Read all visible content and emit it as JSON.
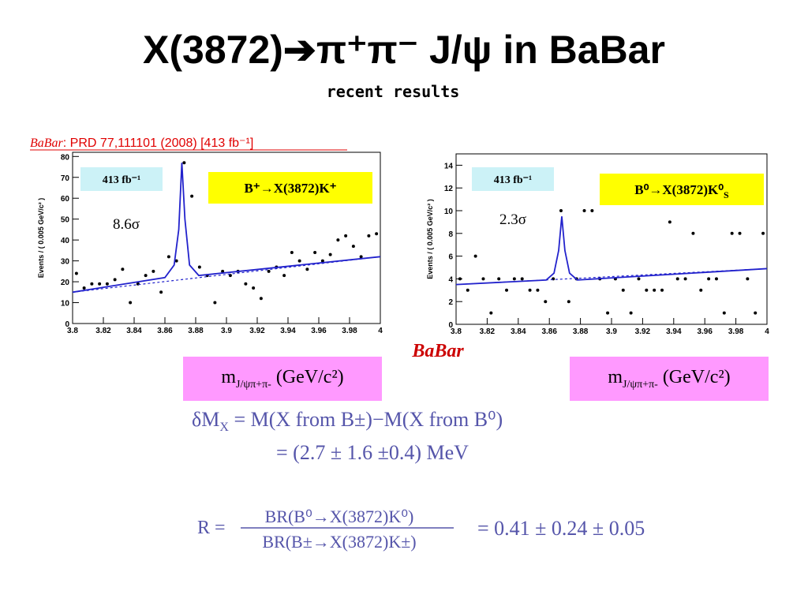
{
  "title": "X(3872)➔π⁺π⁻ J/ψ in BaBar",
  "subtitle": "recent results",
  "reference": {
    "experiment": "BaBar",
    "text": ": PRD 77,111101 (2008) [413 fb⁻¹]"
  },
  "logo": "BaBar",
  "chart_data": [
    {
      "type": "scatter",
      "xlim": [
        3.8,
        4.0
      ],
      "ylim": [
        0,
        82
      ],
      "xticks": [
        3.8,
        3.82,
        3.84,
        3.86,
        3.88,
        3.9,
        3.92,
        3.94,
        3.96,
        3.98,
        4
      ],
      "yticks": [
        0,
        10,
        20,
        30,
        40,
        50,
        60,
        70,
        80
      ],
      "ylabel": "Events / ( 0.005 GeV/c² )",
      "xlabel": {
        "main": "m",
        "sub": "J/ψπ+π-",
        "rest": " (GeV/c²)"
      },
      "luminosity": "413 fb⁻¹",
      "process": {
        "main": "B⁺→X(3872)K⁺",
        "sub": ""
      },
      "significance": "8.6σ",
      "series": [
        {
          "style": "points",
          "color": "#000000",
          "x": [
            3.8025,
            3.8075,
            3.8125,
            3.8175,
            3.8225,
            3.8275,
            3.8325,
            3.8375,
            3.8425,
            3.8475,
            3.8525,
            3.8575,
            3.8625,
            3.8675,
            3.8725,
            3.8775,
            3.8825,
            3.8875,
            3.8925,
            3.8975,
            3.9025,
            3.9075,
            3.9125,
            3.9175,
            3.9225,
            3.9275,
            3.9325,
            3.9375,
            3.9425,
            3.9475,
            3.9525,
            3.9575,
            3.9625,
            3.9675,
            3.9725,
            3.9775,
            3.9825,
            3.9875,
            3.9925,
            3.9975
          ],
          "values": [
            24,
            17,
            19,
            19,
            19,
            21,
            26,
            10,
            19,
            23,
            25,
            15,
            32,
            30,
            77,
            61,
            27,
            23,
            10,
            25,
            23,
            25,
            19,
            17,
            12,
            25,
            27,
            23,
            34,
            30,
            26,
            34,
            30,
            33,
            40,
            42,
            37,
            32,
            42,
            43
          ]
        },
        {
          "style": "line",
          "color": "#2222cc",
          "x": [
            3.8,
            3.86,
            3.866,
            3.869,
            3.871,
            3.873,
            3.876,
            3.882,
            4.0
          ],
          "values": [
            15,
            22,
            28,
            45,
            77,
            50,
            28,
            23,
            32
          ]
        },
        {
          "style": "dashed",
          "color": "#2222cc",
          "x": [
            3.8,
            4.0
          ],
          "values": [
            15,
            32
          ]
        }
      ]
    },
    {
      "type": "scatter",
      "xlim": [
        3.8,
        4.0
      ],
      "ylim": [
        0,
        15
      ],
      "xticks": [
        3.8,
        3.82,
        3.84,
        3.86,
        3.88,
        3.9,
        3.92,
        3.94,
        3.96,
        3.98,
        4
      ],
      "yticks": [
        0,
        2,
        4,
        6,
        8,
        10,
        12,
        14
      ],
      "ylabel": "Events / ( 0.005 GeV/c² )",
      "xlabel": {
        "main": "m",
        "sub": "J/ψπ+π-",
        "rest": " (GeV/c²)"
      },
      "luminosity": "413 fb⁻¹",
      "process": {
        "main": "B⁰→X(3872)K⁰",
        "sub": "S"
      },
      "significance": "2.3σ",
      "series": [
        {
          "style": "points",
          "color": "#000000",
          "x": [
            3.8025,
            3.8075,
            3.8125,
            3.8175,
            3.8225,
            3.8275,
            3.8325,
            3.8375,
            3.8425,
            3.8475,
            3.8525,
            3.8575,
            3.8625,
            3.8675,
            3.8725,
            3.8775,
            3.8825,
            3.8875,
            3.8925,
            3.8975,
            3.9025,
            3.9075,
            3.9125,
            3.9175,
            3.9225,
            3.9275,
            3.9325,
            3.9375,
            3.9425,
            3.9475,
            3.9525,
            3.9575,
            3.9625,
            3.9675,
            3.9725,
            3.9775,
            3.9825,
            3.9875,
            3.9925,
            3.9975
          ],
          "values": [
            4,
            3,
            6,
            4,
            1,
            4,
            3,
            4,
            4,
            3,
            3,
            2,
            4,
            10,
            2,
            4,
            10,
            10,
            4,
            1,
            4,
            3,
            1,
            4,
            3,
            3,
            3,
            9,
            4,
            4,
            8,
            3,
            4,
            4,
            1,
            8,
            8,
            4,
            1,
            8
          ]
        },
        {
          "style": "line",
          "color": "#2222cc",
          "x": [
            3.8,
            3.858,
            3.863,
            3.866,
            3.868,
            3.87,
            3.873,
            3.878,
            4.0
          ],
          "values": [
            3.5,
            3.9,
            4.5,
            6.5,
            9.5,
            6.5,
            4.5,
            3.9,
            4.9
          ]
        },
        {
          "style": "dashed",
          "color": "#2222cc",
          "x": [
            3.8,
            4.0
          ],
          "values": [
            3.5,
            4.9
          ]
        }
      ]
    }
  ],
  "results": {
    "dm_lhs": "δM",
    "dm_lhs_sub": "X",
    "dm_rhs": " = M(X from B±)−M(X from B⁰)",
    "dm_value": "= (2.7 ± 1.6 ±0.4) MeV",
    "ratio_lhs": "R =",
    "ratio_num": "BR(B⁰→X(3872)K⁰)",
    "ratio_den": "BR(B±→X(3872)K±)",
    "ratio_value": "=  0.41 ± 0.24 ± 0.05"
  }
}
